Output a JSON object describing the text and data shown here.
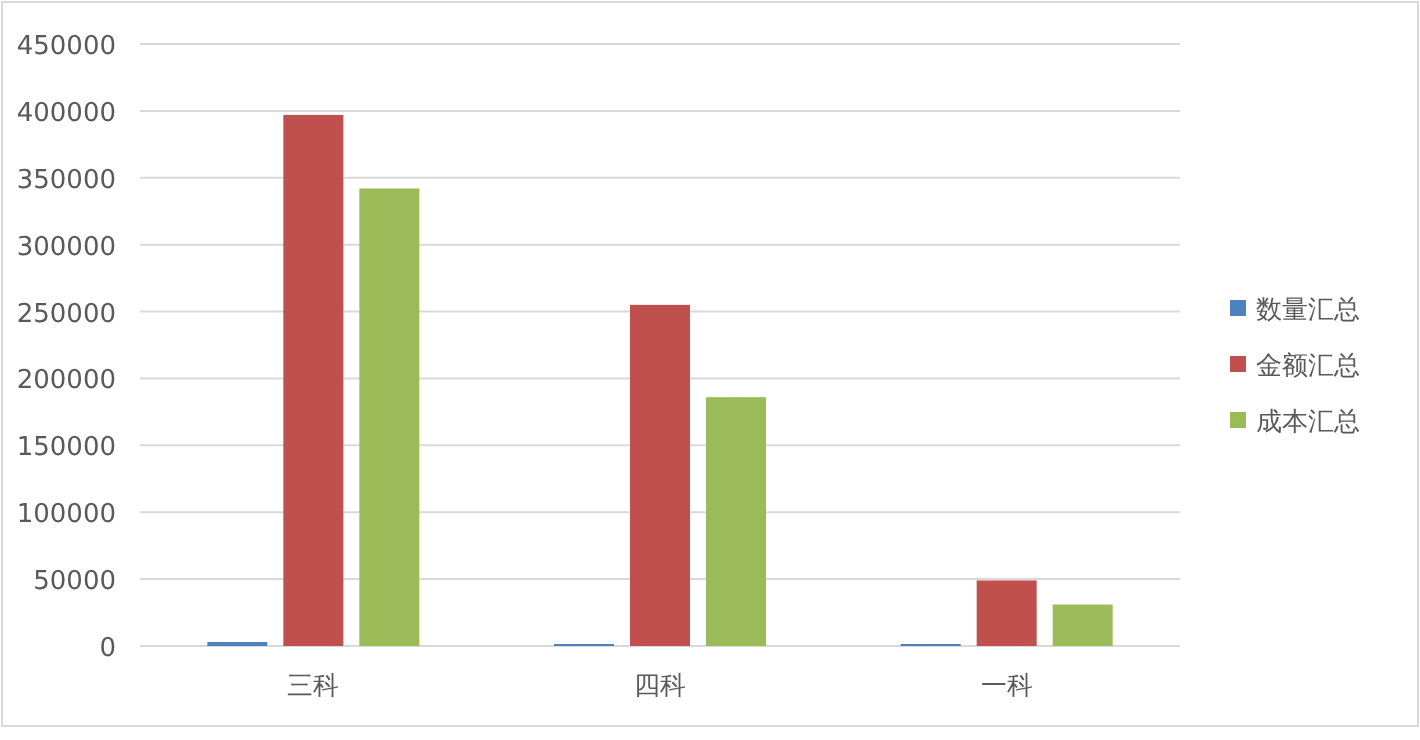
{
  "chart_data": {
    "type": "bar",
    "categories": [
      "三科",
      "四科",
      "一科"
    ],
    "series": [
      {
        "name": "数量汇总",
        "color": "#4f81bd",
        "values": [
          3000,
          1500,
          1500
        ]
      },
      {
        "name": "金额汇总",
        "color": "#c0504d",
        "values": [
          397000,
          255000,
          49000
        ]
      },
      {
        "name": "成本汇总",
        "color": "#9bbb59",
        "values": [
          342000,
          186000,
          31000
        ]
      }
    ],
    "ylim": [
      0,
      450000
    ],
    "yticks": [
      0,
      50000,
      100000,
      150000,
      200000,
      250000,
      300000,
      350000,
      400000,
      450000
    ],
    "grid": "y",
    "legend": "right"
  }
}
